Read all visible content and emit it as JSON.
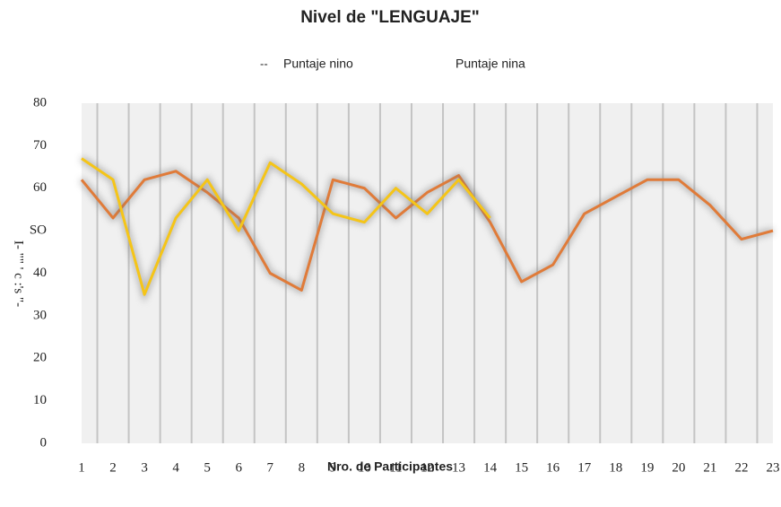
{
  "chart_data": {
    "type": "line",
    "title": "Nivel de \"LENGUAJE\"",
    "x_label": "Nro. de Participantes",
    "y_label": "I- \"\" ' c :'s \"-",
    "categories": [
      "1",
      "2",
      "3",
      "4",
      "5",
      "6",
      "7",
      "8",
      "9",
      "10",
      "11",
      "12",
      "13",
      "14",
      "15",
      "16",
      "17",
      "18",
      "19",
      "20",
      "21",
      "22",
      "23"
    ],
    "series": [
      {
        "name": "Puntaje nino",
        "color": "#e07b39",
        "values": [
          62,
          53,
          62,
          64,
          59,
          53,
          40,
          36,
          62,
          60,
          53,
          59,
          63,
          52,
          38,
          42,
          54,
          58,
          62,
          62,
          56,
          48,
          50
        ]
      },
      {
        "name": "Puntaje nina",
        "color": "#f5c518",
        "values": [
          67,
          62,
          35,
          53,
          62,
          50,
          66,
          61,
          54,
          52,
          60,
          54,
          62,
          53,
          null,
          null,
          null,
          null,
          null,
          null,
          null,
          null,
          null
        ]
      }
    ],
    "ylim": [
      0,
      80
    ],
    "yticks": [
      0,
      10,
      20,
      30,
      {
        "value": 40,
        "label": "40"
      },
      {
        "value": 50,
        "label": "SO"
      },
      60,
      70,
      80
    ],
    "grid": false
  }
}
